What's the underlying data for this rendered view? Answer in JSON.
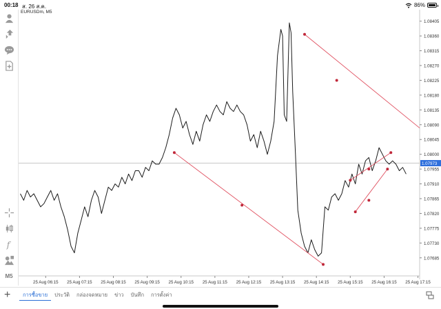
{
  "status_bar": {
    "time": "00:18",
    "date": "ส. 26 ส.ค.",
    "battery": "86%",
    "icons": [
      "wifi-icon",
      "battery-icon"
    ]
  },
  "sidebar": {
    "items": [
      {
        "icon": "account-icon"
      },
      {
        "icon": "trade-icon"
      },
      {
        "icon": "chat-icon"
      },
      {
        "icon": "new-order-icon"
      },
      {
        "icon": "crosshair-icon"
      },
      {
        "icon": "chart-type-icon"
      },
      {
        "icon": "indicators-icon"
      },
      {
        "icon": "objects-icon"
      },
      {
        "label": "M5"
      }
    ]
  },
  "chart": {
    "symbol": "EURUSDm, M5",
    "current_price": "1.07973",
    "accent_color": "#2e6fdc",
    "trendline_color": "#e05060"
  },
  "chart_data": {
    "type": "line",
    "title": "EURUSDm, M5",
    "xlabel": "",
    "ylabel": "",
    "ylim": [
      1.0763,
      1.0844
    ],
    "y_ticks": [
      1.08405,
      1.0836,
      1.08315,
      1.0827,
      1.08225,
      1.0818,
      1.08135,
      1.0809,
      1.08045,
      1.08,
      1.07955,
      1.0791,
      1.07865,
      1.0782,
      1.07775,
      1.0773,
      1.07685
    ],
    "x_ticks": [
      "25 Aug 06:15",
      "25 Aug 07:15",
      "25 Aug 08:15",
      "25 Aug 09:15",
      "25 Aug 10:15",
      "25 Aug 11:15",
      "25 Aug 12:15",
      "25 Aug 13:15",
      "25 Aug 14:15",
      "25 Aug 15:15",
      "25 Aug 16:15",
      "25 Aug 17:15"
    ],
    "x_range": [
      5.5,
      17.35
    ],
    "grid": false,
    "bid_line": 1.07973,
    "series": [
      {
        "x": [
          5.55,
          5.65,
          5.75,
          5.85,
          5.95,
          6.05,
          6.15,
          6.25,
          6.35,
          6.45,
          6.55,
          6.65,
          6.75,
          6.85,
          6.95,
          7.05,
          7.15,
          7.25,
          7.35,
          7.45,
          7.55,
          7.65,
          7.75,
          7.85,
          7.95,
          8.05,
          8.15,
          8.25,
          8.35,
          8.45,
          8.55,
          8.65,
          8.75,
          8.85,
          8.95,
          9.05,
          9.15,
          9.25,
          9.35,
          9.45,
          9.55,
          9.65,
          9.75,
          9.85,
          9.95,
          10.05,
          10.15,
          10.25,
          10.35,
          10.45,
          10.55,
          10.65,
          10.75,
          10.85,
          10.95,
          11.05,
          11.15,
          11.25,
          11.35,
          11.45,
          11.55,
          11.65,
          11.75,
          11.85,
          11.95,
          12.05,
          12.15,
          12.25,
          12.35,
          12.45,
          12.55,
          12.65,
          12.75,
          12.85,
          12.95,
          13.05,
          13.15,
          13.25,
          13.3,
          13.35,
          13.42,
          13.5,
          13.55,
          13.6,
          13.68,
          13.75,
          13.85,
          13.95,
          14.05,
          14.15,
          14.25,
          14.35,
          14.45,
          14.55,
          14.65,
          14.75,
          14.85,
          14.95,
          15.05,
          15.15,
          15.25,
          15.35,
          15.45,
          15.55,
          15.65,
          15.75,
          15.85,
          15.95,
          16.05,
          16.15,
          16.25,
          16.35,
          16.45,
          16.55,
          16.65,
          16.75,
          16.85,
          16.95
        ],
        "y": [
          1.0788,
          1.0786,
          1.0789,
          1.0787,
          1.0788,
          1.0786,
          1.0784,
          1.0785,
          1.0787,
          1.0789,
          1.0786,
          1.0788,
          1.0784,
          1.0781,
          1.0777,
          1.0772,
          1.077,
          1.0776,
          1.078,
          1.0784,
          1.0781,
          1.0786,
          1.0789,
          1.0787,
          1.0782,
          1.0786,
          1.079,
          1.0789,
          1.0791,
          1.079,
          1.0793,
          1.0791,
          1.0794,
          1.0792,
          1.0795,
          1.0795,
          1.0793,
          1.0796,
          1.0795,
          1.0798,
          1.0797,
          1.0797,
          1.0799,
          1.0802,
          1.0806,
          1.0811,
          1.0814,
          1.0812,
          1.0808,
          1.081,
          1.0806,
          1.0803,
          1.0807,
          1.0804,
          1.0809,
          1.0812,
          1.081,
          1.0813,
          1.0815,
          1.0813,
          1.0812,
          1.0816,
          1.0814,
          1.0813,
          1.0815,
          1.0813,
          1.0812,
          1.0809,
          1.0804,
          1.0806,
          1.0802,
          1.0807,
          1.0804,
          1.08,
          1.0804,
          1.081,
          1.083,
          1.0838,
          1.0836,
          1.0812,
          1.081,
          1.084,
          1.0837,
          1.0819,
          1.08,
          1.0783,
          1.0776,
          1.0772,
          1.077,
          1.0774,
          1.0771,
          1.0769,
          1.077,
          1.0784,
          1.0783,
          1.0787,
          1.0788,
          1.0786,
          1.0788,
          1.0792,
          1.079,
          1.0794,
          1.0791,
          1.0797,
          1.0794,
          1.0798,
          1.0799,
          1.0795,
          1.0798,
          1.0802,
          1.08,
          1.0798,
          1.0797,
          1.0798,
          1.0797,
          1.0795,
          1.0796,
          1.0794
        ]
      }
    ],
    "trendlines": [
      {
        "points": [
          [
            10.1,
            1.08005
          ],
          [
            12.1,
            1.07845
          ],
          [
            14.5,
            1.07665
          ]
        ],
        "dots": [
          0,
          1,
          2
        ]
      },
      {
        "points": [
          [
            13.95,
            1.08365
          ],
          [
            14.9,
            1.08225
          ],
          [
            17.35,
            1.0808
          ]
        ],
        "dots": [
          0,
          1
        ]
      },
      {
        "points": [
          [
            15.3,
            1.07921
          ],
          [
            15.85,
            1.07955
          ],
          [
            16.5,
            1.08005
          ]
        ],
        "dots": [
          0,
          1,
          2
        ]
      },
      {
        "points": [
          [
            15.45,
            1.07825
          ],
          [
            15.85,
            1.0786
          ],
          [
            16.4,
            1.07955
          ]
        ],
        "dots": [
          0,
          1,
          2
        ]
      }
    ]
  },
  "bottom_bar": {
    "tabs": [
      "การซื้อขาย",
      "ประวัติ",
      "กล่องจดหมาย",
      "ข่าว",
      "บันทึก",
      "การตั้งค่า"
    ],
    "active_tab": 0
  }
}
